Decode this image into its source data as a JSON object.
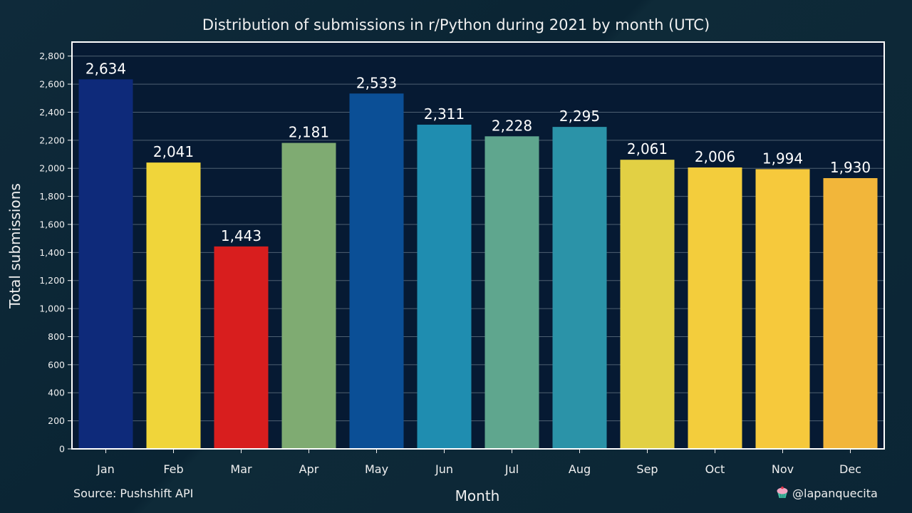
{
  "chart_data": {
    "type": "bar",
    "title": "Distribution of submissions in r/Python during 2021 by month (UTC)",
    "xlabel": "Month",
    "ylabel": "Total submissions",
    "categories": [
      "Jan",
      "Feb",
      "Mar",
      "Apr",
      "May",
      "Jun",
      "Jul",
      "Aug",
      "Sep",
      "Oct",
      "Nov",
      "Dec"
    ],
    "values": [
      2634,
      2041,
      1443,
      2181,
      2533,
      2311,
      2228,
      2295,
      2061,
      2006,
      1994,
      1930
    ],
    "value_labels": [
      "2,634",
      "2,041",
      "1,443",
      "2,181",
      "2,533",
      "2,311",
      "2,228",
      "2,295",
      "2,061",
      "2,006",
      "1,994",
      "1,930"
    ],
    "bar_colors": [
      "#0e2a7a",
      "#f0d53a",
      "#d81e1e",
      "#7fab72",
      "#0b4f96",
      "#1f8db0",
      "#5fa68e",
      "#2b93a8",
      "#e2d044",
      "#f3cd3c",
      "#f6c93c",
      "#f2b63a"
    ],
    "ylim": [
      0,
      2900
    ],
    "yticks": [
      0,
      200,
      400,
      600,
      800,
      1000,
      1200,
      1400,
      1600,
      1800,
      2000,
      2200,
      2400,
      2600,
      2800
    ],
    "ytick_labels": [
      "0",
      "200",
      "400",
      "600",
      "800",
      "1,000",
      "1,200",
      "1,400",
      "1,600",
      "1,800",
      "2,000",
      "2,200",
      "2,400",
      "2,600",
      "2,800"
    ],
    "grid": true,
    "plot_background": "#061a33",
    "plot_border": "#ffffff"
  },
  "footer": {
    "source": "Source: Pushshift API",
    "credit": "@lapanquecita",
    "credit_icon": "cupcake-icon"
  }
}
